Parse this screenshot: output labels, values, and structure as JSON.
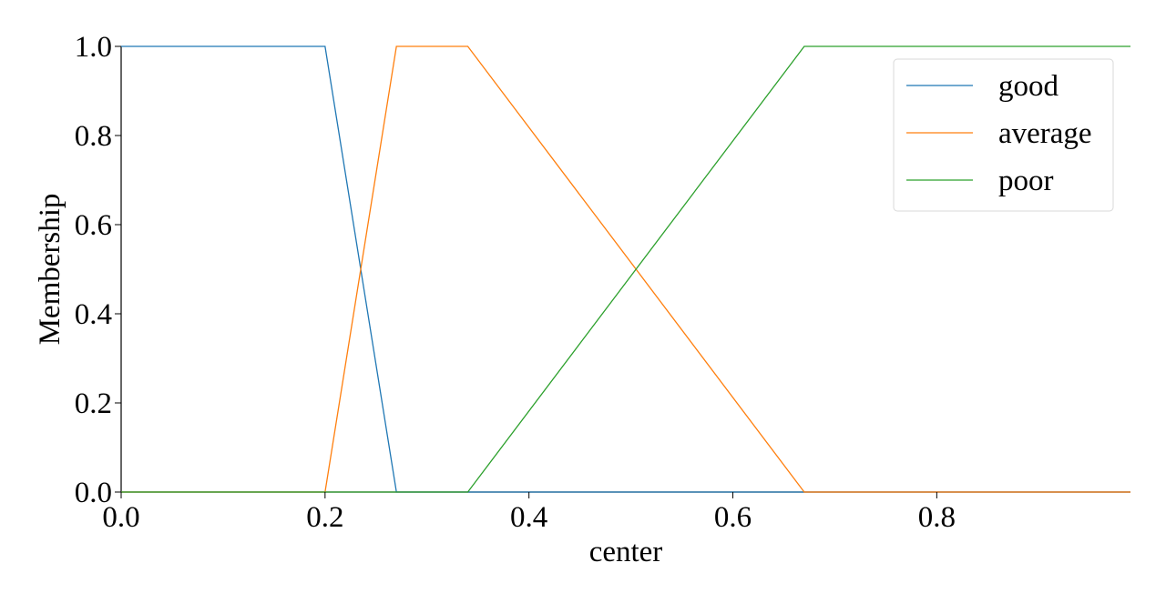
{
  "chart_data": {
    "type": "line",
    "xlabel": "center",
    "ylabel": "Membership",
    "xlim": [
      0.0,
      0.99
    ],
    "ylim": [
      0.0,
      1.0
    ],
    "xticks": [
      0.0,
      0.2,
      0.4,
      0.6,
      0.8
    ],
    "xtick_labels": [
      "0.0",
      "0.2",
      "0.4",
      "0.6",
      "0.8"
    ],
    "yticks": [
      0.0,
      0.2,
      0.4,
      0.6,
      0.8,
      1.0
    ],
    "ytick_labels": [
      "0.0",
      "0.2",
      "0.4",
      "0.6",
      "0.8",
      "1.0"
    ],
    "grid": false,
    "legend_position": "top-right",
    "series": [
      {
        "name": "good",
        "color": "#1f77b4",
        "x": [
          0.0,
          0.2,
          0.27,
          0.99
        ],
        "y": [
          1.0,
          1.0,
          0.0,
          0.0
        ]
      },
      {
        "name": "average",
        "color": "#ff7f0e",
        "x": [
          0.0,
          0.2,
          0.27,
          0.34,
          0.67,
          0.99
        ],
        "y": [
          0.0,
          0.0,
          1.0,
          1.0,
          0.0,
          0.0
        ]
      },
      {
        "name": "poor",
        "color": "#2ca02c",
        "x": [
          0.0,
          0.34,
          0.67,
          0.99
        ],
        "y": [
          0.0,
          0.0,
          1.0,
          1.0
        ]
      }
    ]
  }
}
